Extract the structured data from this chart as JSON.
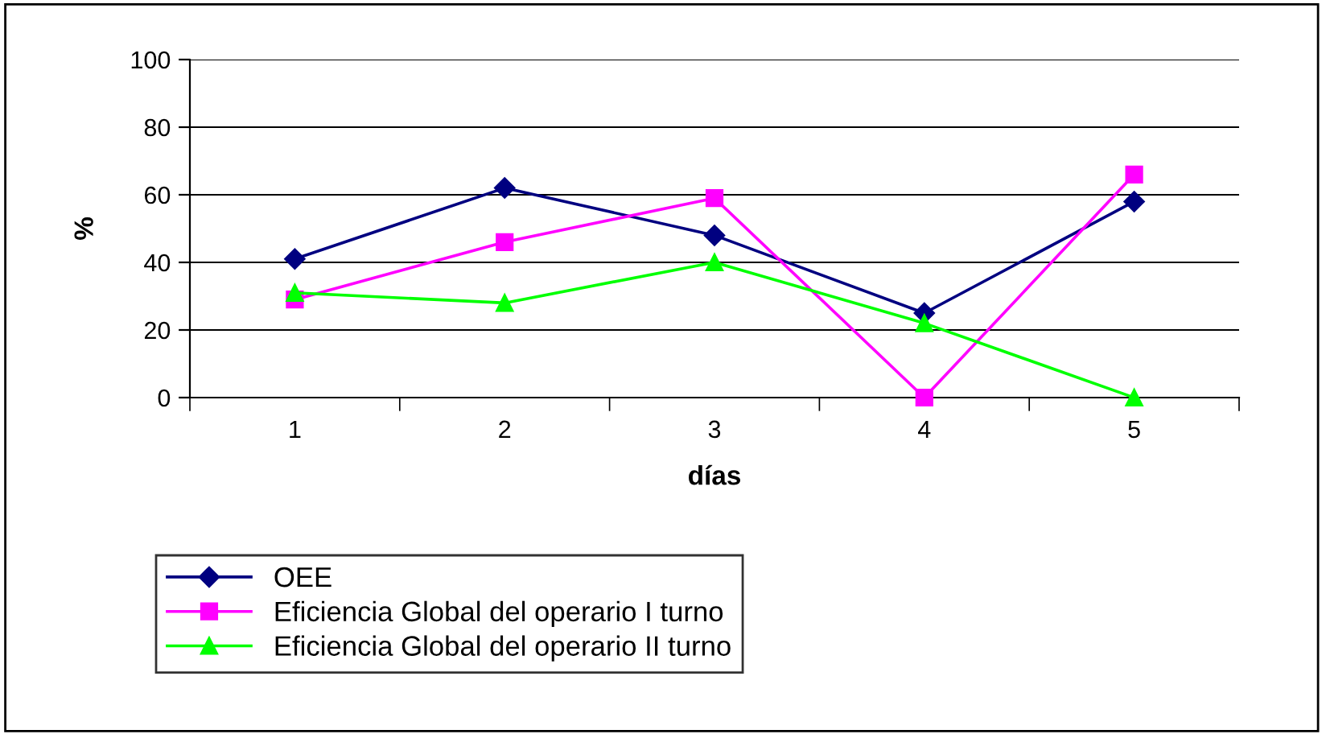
{
  "chart_data": {
    "type": "line",
    "xlabel": "días",
    "ylabel": "%",
    "categories": [
      "1",
      "2",
      "3",
      "4",
      "5"
    ],
    "series": [
      {
        "name": "OEE",
        "color": "#000080",
        "marker": "diamond",
        "values": [
          41,
          62,
          48,
          25,
          58
        ]
      },
      {
        "name": "Eficiencia Global del operario I turno",
        "color": "#ff00ff",
        "marker": "square",
        "values": [
          29,
          46,
          59,
          0,
          66
        ]
      },
      {
        "name": "Eficiencia Global del operario II turno",
        "color": "#00ff00",
        "marker": "triangle",
        "values": [
          31,
          28,
          40,
          22,
          0
        ]
      }
    ],
    "ylim": [
      0,
      100
    ],
    "yticks": [
      0,
      20,
      40,
      60,
      80,
      100
    ],
    "grid": "y",
    "legend": "bottom left"
  }
}
